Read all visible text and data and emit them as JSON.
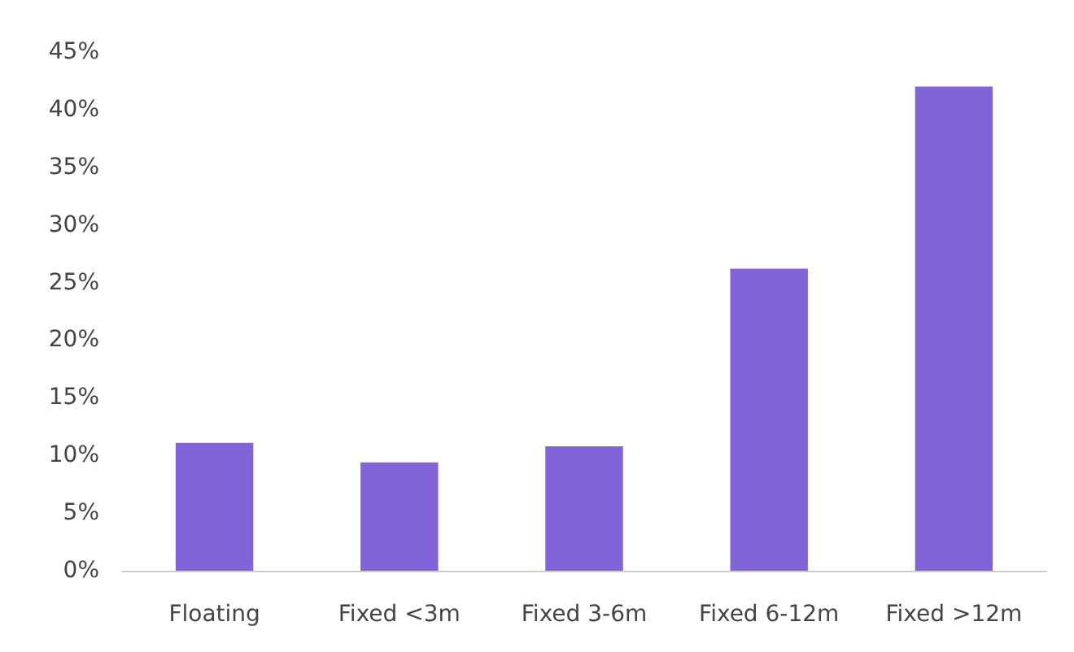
{
  "chart_data": {
    "type": "bar",
    "categories": [
      "Floating",
      "Fixed <3m",
      "Fixed 3-6m",
      "Fixed 6-12m",
      "Fixed >12m"
    ],
    "values": [
      11.1,
      9.4,
      10.8,
      26.2,
      42.0
    ],
    "color": "#8064d8",
    "ylim": [
      0,
      45
    ],
    "yticks": [
      {
        "value": 0,
        "label": "0%"
      },
      {
        "value": 5,
        "label": "5%"
      },
      {
        "value": 10,
        "label": "10%"
      },
      {
        "value": 15,
        "label": "15%"
      },
      {
        "value": 20,
        "label": "20%"
      },
      {
        "value": 25,
        "label": "25%"
      },
      {
        "value": 30,
        "label": "30%"
      },
      {
        "value": 35,
        "label": "35%"
      },
      {
        "value": 40,
        "label": "40%"
      },
      {
        "value": 45,
        "label": "45%"
      }
    ],
    "grid": false
  }
}
